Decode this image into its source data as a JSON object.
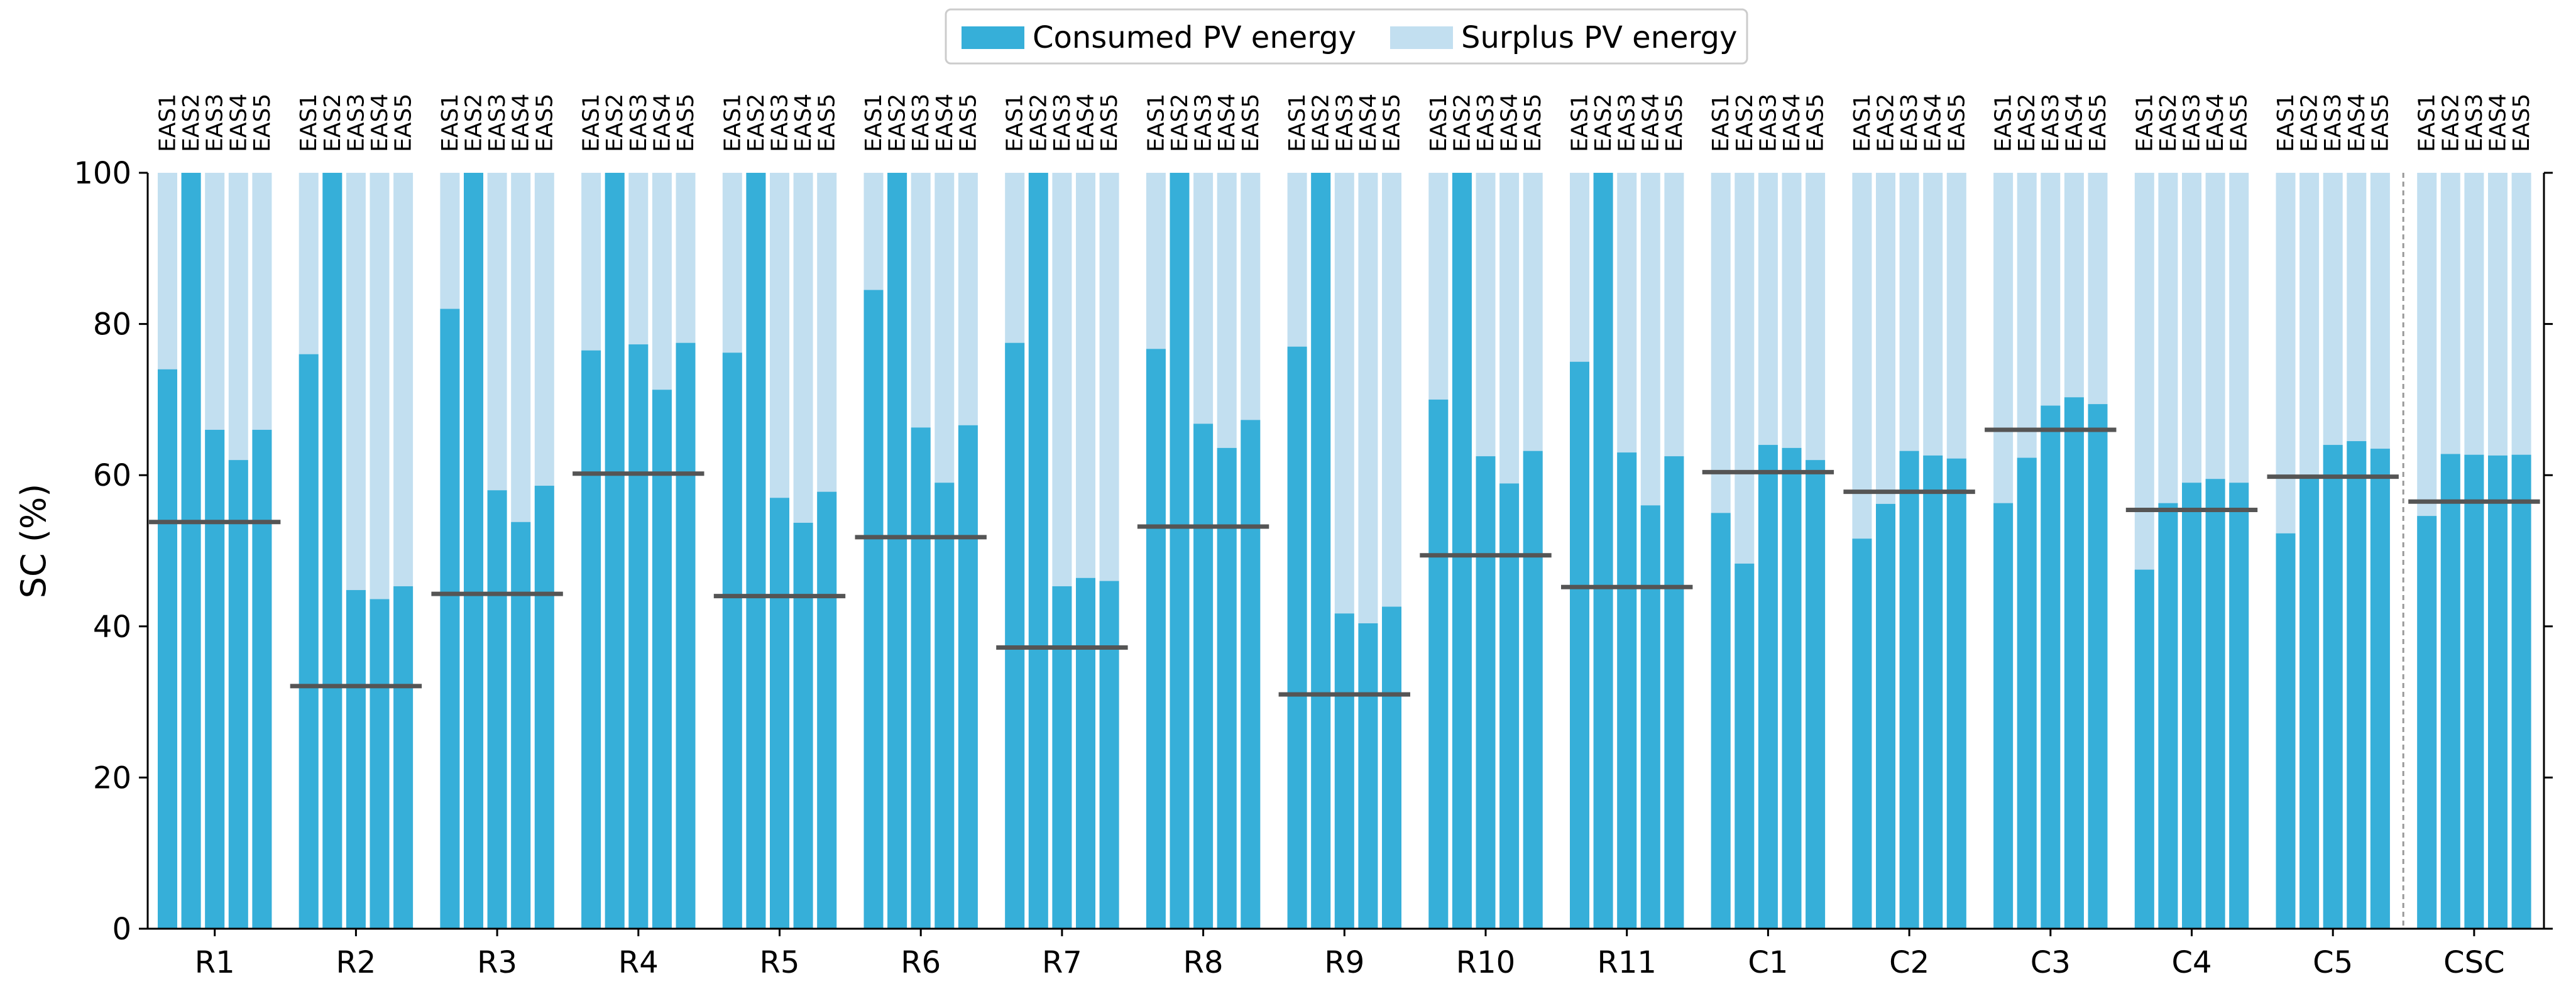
{
  "chart_data": {
    "type": "bar",
    "ylabel": "SC (%)",
    "ylim": [
      0,
      100
    ],
    "yticks": [
      0,
      20,
      40,
      60,
      80,
      100
    ],
    "legend_position": "top-center",
    "colors": {
      "consumed": "#36afd9",
      "surplus": "#c2dff0",
      "reference_line": "#555555",
      "separator": "#999999"
    },
    "series": [
      {
        "name": "Consumed PV energy"
      },
      {
        "name": "Surplus PV energy"
      }
    ],
    "sub_labels": [
      "EAS1",
      "EAS2",
      "EAS3",
      "EAS4",
      "EAS5"
    ],
    "groups": [
      {
        "label": "R1",
        "consumed": [
          74,
          100,
          66,
          62,
          66
        ],
        "reference": 53.8
      },
      {
        "label": "R2",
        "consumed": [
          76,
          100,
          44.8,
          43.6,
          45.3
        ],
        "reference": 32.1
      },
      {
        "label": "R3",
        "consumed": [
          82,
          100,
          58,
          53.8,
          58.6
        ],
        "reference": 44.3
      },
      {
        "label": "R4",
        "consumed": [
          76.5,
          100,
          77.3,
          71.3,
          77.5
        ],
        "reference": 60.2
      },
      {
        "label": "R5",
        "consumed": [
          76.2,
          100,
          57,
          53.7,
          57.8
        ],
        "reference": 44
      },
      {
        "label": "R6",
        "consumed": [
          84.5,
          100,
          66.3,
          59,
          66.6
        ],
        "reference": 51.8
      },
      {
        "label": "R7",
        "consumed": [
          77.5,
          100,
          45.3,
          46.4,
          46
        ],
        "reference": 37.2
      },
      {
        "label": "R8",
        "consumed": [
          76.7,
          100,
          66.8,
          63.6,
          67.3
        ],
        "reference": 53.2
      },
      {
        "label": "R9",
        "consumed": [
          77,
          100,
          41.7,
          40.4,
          42.6
        ],
        "reference": 31
      },
      {
        "label": "R10",
        "consumed": [
          70,
          100,
          62.5,
          58.9,
          63.2
        ],
        "reference": 49.4
      },
      {
        "label": "R11",
        "consumed": [
          75,
          100,
          63,
          56,
          62.5
        ],
        "reference": 45.2
      },
      {
        "label": "C1",
        "consumed": [
          55,
          48.3,
          64,
          63.6,
          62
        ],
        "reference": 60.4
      },
      {
        "label": "C2",
        "consumed": [
          51.6,
          56.2,
          63.2,
          62.6,
          62.2
        ],
        "reference": 57.8
      },
      {
        "label": "C3",
        "consumed": [
          56.3,
          62.3,
          69.2,
          70.3,
          69.4
        ],
        "reference": 66
      },
      {
        "label": "C4",
        "consumed": [
          47.5,
          56.3,
          59,
          59.5,
          59
        ],
        "reference": 55.4
      },
      {
        "label": "C5",
        "consumed": [
          52.3,
          59.8,
          64,
          64.5,
          63.5
        ],
        "reference": 59.8
      },
      {
        "label": "CSC",
        "consumed": [
          54.6,
          62.8,
          62.7,
          62.6,
          62.7
        ],
        "reference": 56.5
      }
    ]
  }
}
